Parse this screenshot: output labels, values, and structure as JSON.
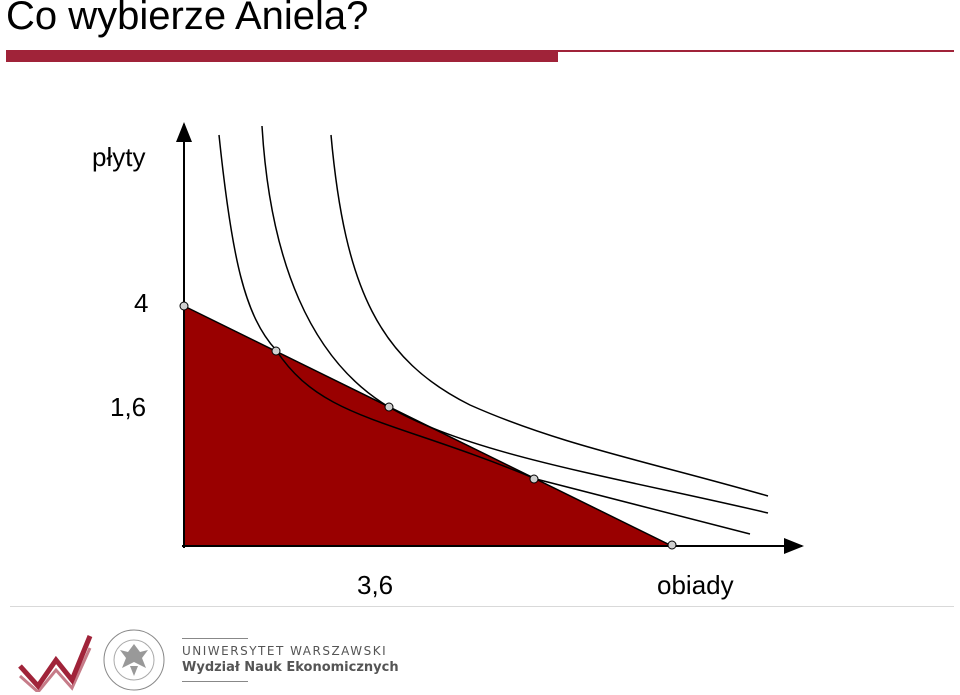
{
  "slide": {
    "title": "Co wybierze Aniela?",
    "accent_color": "#a02339",
    "fill_color": "#990000"
  },
  "chart_data": {
    "type": "diagram",
    "ylabel": "płyty",
    "xlabel": "obiady",
    "y_ticks": [
      "4",
      "1,6"
    ],
    "x_ticks": [
      "3,6"
    ],
    "elements": [
      "budget-set",
      "budget-line",
      "indifference-curve-1",
      "indifference-curve-2",
      "indifference-curve-3"
    ]
  },
  "footer": {
    "university": "UNIWERSYTET WARSZAWSKI",
    "faculty": "Wydział Nauk Ekonomicznych",
    "logo_icon": "wne-zigzag-icon",
    "seal_icon": "university-seal-icon"
  }
}
